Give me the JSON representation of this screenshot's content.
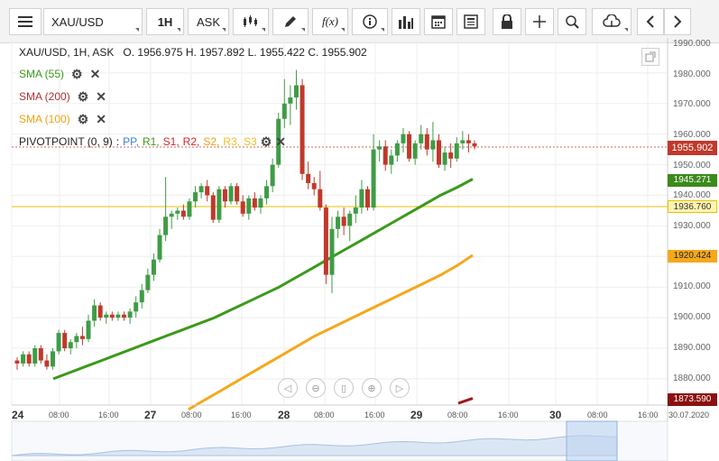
{
  "toolbar": {
    "menu_icon": "hamburger-menu-icon",
    "symbol": "XAU/USD",
    "timeframe": "1H",
    "price_type": "ASK",
    "f_label": "f(x)"
  },
  "header": {
    "title": "XAU/USD, 1H, ASK",
    "open_label": "O.",
    "open": "1956.975",
    "high_label": "H.",
    "high": "1957.892",
    "low_label": "L.",
    "low": "1955.422",
    "close_label": "C.",
    "close": "1955.902"
  },
  "indicators": {
    "sma55": "SMA (55)",
    "sma200": "SMA (200)",
    "sma100": "SMA (100)",
    "pivot": "PIVOTPOINT (0, 9)",
    "pivot_sep": ":",
    "pivot_levels": [
      "PP,",
      "R1,",
      "S1,",
      "R2,",
      "S2,",
      "R3,",
      "S3"
    ]
  },
  "y_axis": {
    "labels": [
      "1990.000",
      "1980.000",
      "1970.000",
      "1960.000",
      "1950.000",
      "1940.000",
      "1930.000",
      "1910.000",
      "1900.000",
      "1890.000",
      "1880.000"
    ],
    "tags": {
      "price": "1955.902",
      "sma55": "1945.271",
      "pivot": "1936.760",
      "sma100": "1920.424",
      "sma200": "1873.590"
    }
  },
  "x_axis": {
    "labels": [
      "24",
      "08:00",
      "16:00",
      "27",
      "08:00",
      "16:00",
      "28",
      "08:00",
      "16:00",
      "29",
      "08:00",
      "16:00",
      "30",
      "08:00",
      "16:00",
      "30.07.2020"
    ]
  },
  "colors": {
    "up": "#3f9c46",
    "down": "#c0392b",
    "sma55": "#3b9a1a",
    "sma100": "#f5a81c",
    "sma200": "#a01818",
    "pivot": "#e6c300",
    "price_tag": "#c0392b"
  },
  "chart_data": {
    "type": "candlestick",
    "title": "XAU/USD, 1H, ASK",
    "ylim": [
      1870,
      1993
    ],
    "candles": [
      [
        1886,
        1887,
        1883,
        1885
      ],
      [
        1885,
        1889,
        1884,
        1888
      ],
      [
        1888,
        1889,
        1884,
        1885
      ],
      [
        1885,
        1891,
        1884,
        1890
      ],
      [
        1890,
        1891,
        1885,
        1886
      ],
      [
        1886,
        1888,
        1883,
        1884
      ],
      [
        1884,
        1890,
        1883,
        1889
      ],
      [
        1889,
        1896,
        1888,
        1895
      ],
      [
        1895,
        1896,
        1889,
        1890
      ],
      [
        1890,
        1893,
        1888,
        1892
      ],
      [
        1892,
        1895,
        1890,
        1894
      ],
      [
        1894,
        1897,
        1891,
        1893
      ],
      [
        1893,
        1901,
        1892,
        1899
      ],
      [
        1899,
        1906,
        1897,
        1904
      ],
      [
        1904,
        1905,
        1899,
        1900
      ],
      [
        1900,
        1902,
        1898,
        1901
      ],
      [
        1901,
        1902,
        1899,
        1900
      ],
      [
        1900,
        1902,
        1899,
        1901
      ],
      [
        1901,
        1902,
        1899,
        1900
      ],
      [
        1900,
        1903,
        1898,
        1902
      ],
      [
        1902,
        1907,
        1900,
        1905
      ],
      [
        1905,
        1911,
        1903,
        1909
      ],
      [
        1909,
        1916,
        1908,
        1914
      ],
      [
        1914,
        1921,
        1912,
        1919
      ],
      [
        1919,
        1929,
        1918,
        1927
      ],
      [
        1927,
        1946,
        1925,
        1933
      ],
      [
        1933,
        1935,
        1929,
        1934
      ],
      [
        1934,
        1936,
        1932,
        1935
      ],
      [
        1935,
        1937,
        1932,
        1933
      ],
      [
        1933,
        1939,
        1932,
        1938
      ],
      [
        1938,
        1943,
        1936,
        1941
      ],
      [
        1941,
        1944,
        1939,
        1943
      ],
      [
        1943,
        1945,
        1938,
        1940
      ],
      [
        1940,
        1941,
        1931,
        1932
      ],
      [
        1932,
        1943,
        1931,
        1942
      ],
      [
        1942,
        1943,
        1936,
        1938
      ],
      [
        1938,
        1944,
        1937,
        1943
      ],
      [
        1943,
        1944,
        1937,
        1938
      ],
      [
        1938,
        1940,
        1933,
        1934
      ],
      [
        1934,
        1940,
        1932,
        1939
      ],
      [
        1939,
        1941,
        1935,
        1936
      ],
      [
        1936,
        1940,
        1934,
        1939
      ],
      [
        1939,
        1945,
        1937,
        1943
      ],
      [
        1943,
        1952,
        1941,
        1950
      ],
      [
        1950,
        1967,
        1949,
        1965
      ],
      [
        1965,
        1978,
        1962,
        1970
      ],
      [
        1970,
        1976,
        1963,
        1972
      ],
      [
        1972,
        1981,
        1968,
        1976
      ],
      [
        1976,
        1978,
        1945,
        1947
      ],
      [
        1947,
        1951,
        1942,
        1944
      ],
      [
        1944,
        1946,
        1940,
        1942
      ],
      [
        1942,
        1948,
        1935,
        1936
      ],
      [
        1936,
        1937,
        1911,
        1914
      ],
      [
        1914,
        1933,
        1908,
        1929
      ],
      [
        1929,
        1935,
        1926,
        1933
      ],
      [
        1933,
        1936,
        1927,
        1930
      ],
      [
        1930,
        1935,
        1925,
        1934
      ],
      [
        1934,
        1940,
        1931,
        1936
      ],
      [
        1936,
        1945,
        1934,
        1942
      ],
      [
        1942,
        1943,
        1935,
        1936
      ],
      [
        1936,
        1960,
        1935,
        1955
      ],
      [
        1955,
        1958,
        1951,
        1956
      ],
      [
        1956,
        1958,
        1948,
        1950
      ],
      [
        1950,
        1955,
        1947,
        1953
      ],
      [
        1953,
        1958,
        1951,
        1957
      ],
      [
        1957,
        1962,
        1954,
        1960
      ],
      [
        1960,
        1961,
        1951,
        1952
      ],
      [
        1952,
        1958,
        1950,
        1957
      ],
      [
        1957,
        1963,
        1955,
        1960
      ],
      [
        1960,
        1962,
        1953,
        1955
      ],
      [
        1955,
        1964,
        1951,
        1958
      ],
      [
        1958,
        1960,
        1949,
        1950
      ],
      [
        1950,
        1956,
        1948,
        1954
      ],
      [
        1954,
        1957,
        1949,
        1952
      ],
      [
        1952,
        1959,
        1951,
        1957
      ],
      [
        1957,
        1961,
        1955,
        1958
      ],
      [
        1958,
        1960,
        1954,
        1957
      ],
      [
        1957,
        1958,
        1955,
        1956
      ]
    ],
    "sma55": [
      1880,
      1882,
      1884,
      1886,
      1888,
      1890,
      1892,
      1894,
      1896,
      1898,
      1900,
      1902.5,
      1905,
      1907.5,
      1910,
      1913,
      1916,
      1919,
      1922,
      1925,
      1928,
      1931,
      1934,
      1937,
      1940,
      1942.5,
      1945.3
    ],
    "sma100": [
      1870,
      1873,
      1876,
      1879,
      1882,
      1885,
      1888,
      1891,
      1894,
      1896.5,
      1899,
      1901.5,
      1904,
      1906.5,
      1909,
      1911.5,
      1914,
      1917,
      1920.4
    ],
    "sma200": [
      1872,
      1873.6
    ],
    "pivot": 1936.76,
    "current_price": 1955.902
  }
}
